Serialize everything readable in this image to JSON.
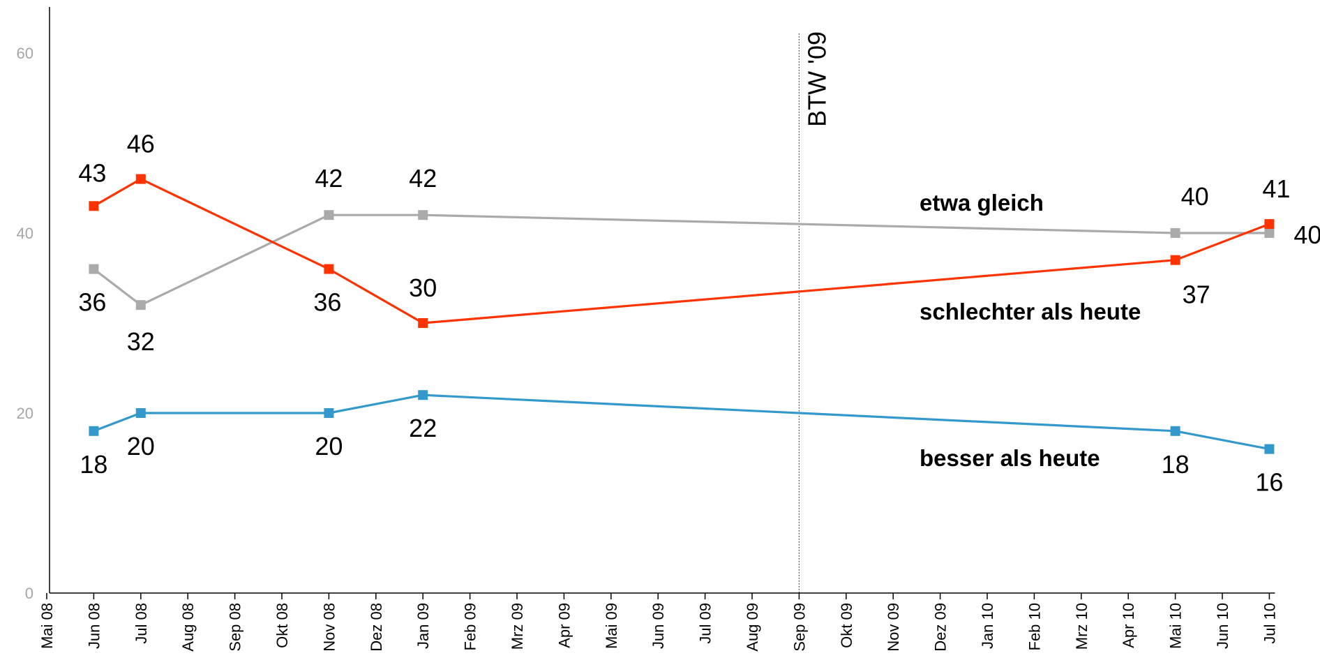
{
  "chart_data": {
    "type": "line",
    "x": [
      "Mai 08",
      "Jun 08",
      "Jul 08",
      "Aug 08",
      "Sep 08",
      "Okt 08",
      "Nov 08",
      "Dez 08",
      "Jan 09",
      "Feb 09",
      "Mrz 09",
      "Apr 09",
      "Mai 09",
      "Jun 09",
      "Jul 09",
      "Aug 09",
      "Sep 09",
      "Okt 09",
      "Nov 09",
      "Dez 09",
      "Jan 10",
      "Feb 10",
      "Mrz 10",
      "Apr 10",
      "Mai 10",
      "Jun 10",
      "Jul 10"
    ],
    "ylim": [
      0,
      60
    ],
    "yticks": [
      0,
      20,
      40,
      60
    ],
    "grid": false,
    "series": [
      {
        "name": "etwa gleich",
        "color": "#aaaaaa",
        "points": [
          {
            "x": "Jun 08",
            "y": 36
          },
          {
            "x": "Jul 08",
            "y": 32
          },
          {
            "x": "Nov 08",
            "y": 42
          },
          {
            "x": "Jan 09",
            "y": 42
          },
          {
            "x": "Mai 10",
            "y": 40
          },
          {
            "x": "Jul 10",
            "y": 40
          }
        ]
      },
      {
        "name": "schlechter als heute",
        "color": "#ff3300",
        "points": [
          {
            "x": "Jun 08",
            "y": 43
          },
          {
            "x": "Jul 08",
            "y": 46
          },
          {
            "x": "Nov 08",
            "y": 36
          },
          {
            "x": "Jan 09",
            "y": 30
          },
          {
            "x": "Mai 10",
            "y": 37
          },
          {
            "x": "Jul 10",
            "y": 41
          }
        ]
      },
      {
        "name": "besser als heute",
        "color": "#3399cc",
        "points": [
          {
            "x": "Jun 08",
            "y": 18
          },
          {
            "x": "Jul 08",
            "y": 20
          },
          {
            "x": "Nov 08",
            "y": 20
          },
          {
            "x": "Jan 09",
            "y": 22
          },
          {
            "x": "Mai 10",
            "y": 18
          },
          {
            "x": "Jul 10",
            "y": 16
          }
        ]
      }
    ],
    "annotations": [
      {
        "text": "BTW '09",
        "x": "Sep 09",
        "style": "dotted-vertical-line"
      }
    ]
  }
}
